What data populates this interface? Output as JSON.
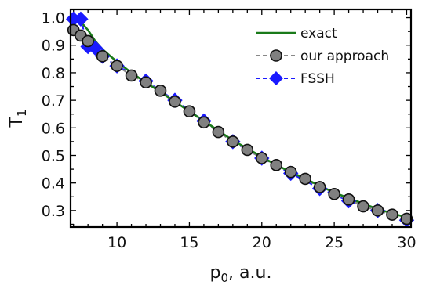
{
  "chart_data": {
    "type": "line",
    "xlabel": "p",
    "xlabel_sub": "0",
    "xlabel_suffix": ", a.u.",
    "ylabel": "T",
    "ylabel_sub": "1",
    "xlim": [
      6.8,
      30.3
    ],
    "ylim": [
      0.24,
      1.03
    ],
    "xticks": [
      10,
      15,
      20,
      25,
      30
    ],
    "xtick_labels": [
      "10",
      "15",
      "20",
      "25",
      "30"
    ],
    "yticks": [
      0.3,
      0.4,
      0.5,
      0.6,
      0.7,
      0.8,
      0.9,
      1.0
    ],
    "ytick_labels": [
      "0.3",
      "0.4",
      "0.5",
      "0.6",
      "0.7",
      "0.8",
      "0.9",
      "1.0"
    ],
    "grid": false,
    "legend_position": "top-right",
    "series": [
      {
        "name": "exact",
        "style": "solid-line",
        "color": "#1a7a1a",
        "x": [
          6.9,
          7.5,
          8,
          8.5,
          9,
          10,
          11,
          12,
          13,
          14,
          15,
          16,
          17,
          18,
          19,
          20,
          21,
          22,
          23,
          24,
          25,
          26,
          27,
          28,
          29,
          30
        ],
        "y": [
          1.0,
          0.985,
          0.955,
          0.915,
          0.885,
          0.84,
          0.8,
          0.765,
          0.73,
          0.695,
          0.66,
          0.625,
          0.59,
          0.555,
          0.525,
          0.495,
          0.465,
          0.44,
          0.415,
          0.39,
          0.365,
          0.345,
          0.325,
          0.305,
          0.29,
          0.275
        ]
      },
      {
        "name": "our approach",
        "style": "dashed-circles",
        "color": "#888888",
        "marker_fill": "#808080",
        "x": [
          7,
          7.5,
          8,
          9,
          10,
          11,
          12,
          13,
          14,
          15,
          16,
          17,
          18,
          19,
          20,
          21,
          22,
          23,
          24,
          25,
          26,
          27,
          28,
          29,
          30
        ],
        "y": [
          0.955,
          0.935,
          0.915,
          0.86,
          0.825,
          0.79,
          0.765,
          0.735,
          0.695,
          0.66,
          0.62,
          0.585,
          0.55,
          0.52,
          0.49,
          0.465,
          0.44,
          0.415,
          0.385,
          0.36,
          0.34,
          0.315,
          0.3,
          0.285,
          0.27
        ]
      },
      {
        "name": "FSSH",
        "style": "dashed-diamonds",
        "color": "#1a1aff",
        "x": [
          7,
          7.5,
          8,
          8.5,
          9,
          10,
          12,
          14,
          16,
          18,
          20,
          22,
          24,
          26,
          28,
          30
        ],
        "y": [
          0.995,
          0.995,
          0.895,
          0.89,
          0.86,
          0.825,
          0.77,
          0.7,
          0.625,
          0.55,
          0.49,
          0.435,
          0.38,
          0.335,
          0.3,
          0.265
        ]
      }
    ]
  }
}
